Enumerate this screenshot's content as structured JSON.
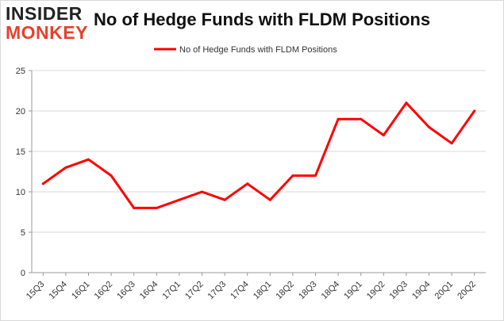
{
  "logo": {
    "line1": "INSIDER",
    "line2": "MONKEY"
  },
  "chart_data": {
    "type": "line",
    "title": "No of Hedge Funds with FLDM Positions",
    "xlabel": "",
    "ylabel": "",
    "categories": [
      "15Q3",
      "15Q4",
      "16Q1",
      "16Q2",
      "16Q3",
      "16Q4",
      "17Q1",
      "17Q2",
      "17Q3",
      "17Q4",
      "18Q1",
      "18Q2",
      "18Q3",
      "18Q4",
      "19Q1",
      "19Q2",
      "19Q3",
      "19Q4",
      "20Q1",
      "20Q2"
    ],
    "series": [
      {
        "name": "No of Hedge Funds with FLDM Positions",
        "color": "#ff0000",
        "values": [
          11,
          13,
          14,
          12,
          8,
          8,
          9,
          10,
          9,
          11,
          9,
          12,
          12,
          19,
          19,
          17,
          21,
          18,
          16,
          20
        ]
      }
    ],
    "ylim": [
      0,
      25
    ],
    "yticks": [
      0,
      5,
      10,
      15,
      20,
      25
    ],
    "grid": true,
    "legend": "top-center",
    "colors": {
      "line": "#ff0000",
      "grid": "#d9d9d9",
      "axis": "#999999"
    }
  }
}
